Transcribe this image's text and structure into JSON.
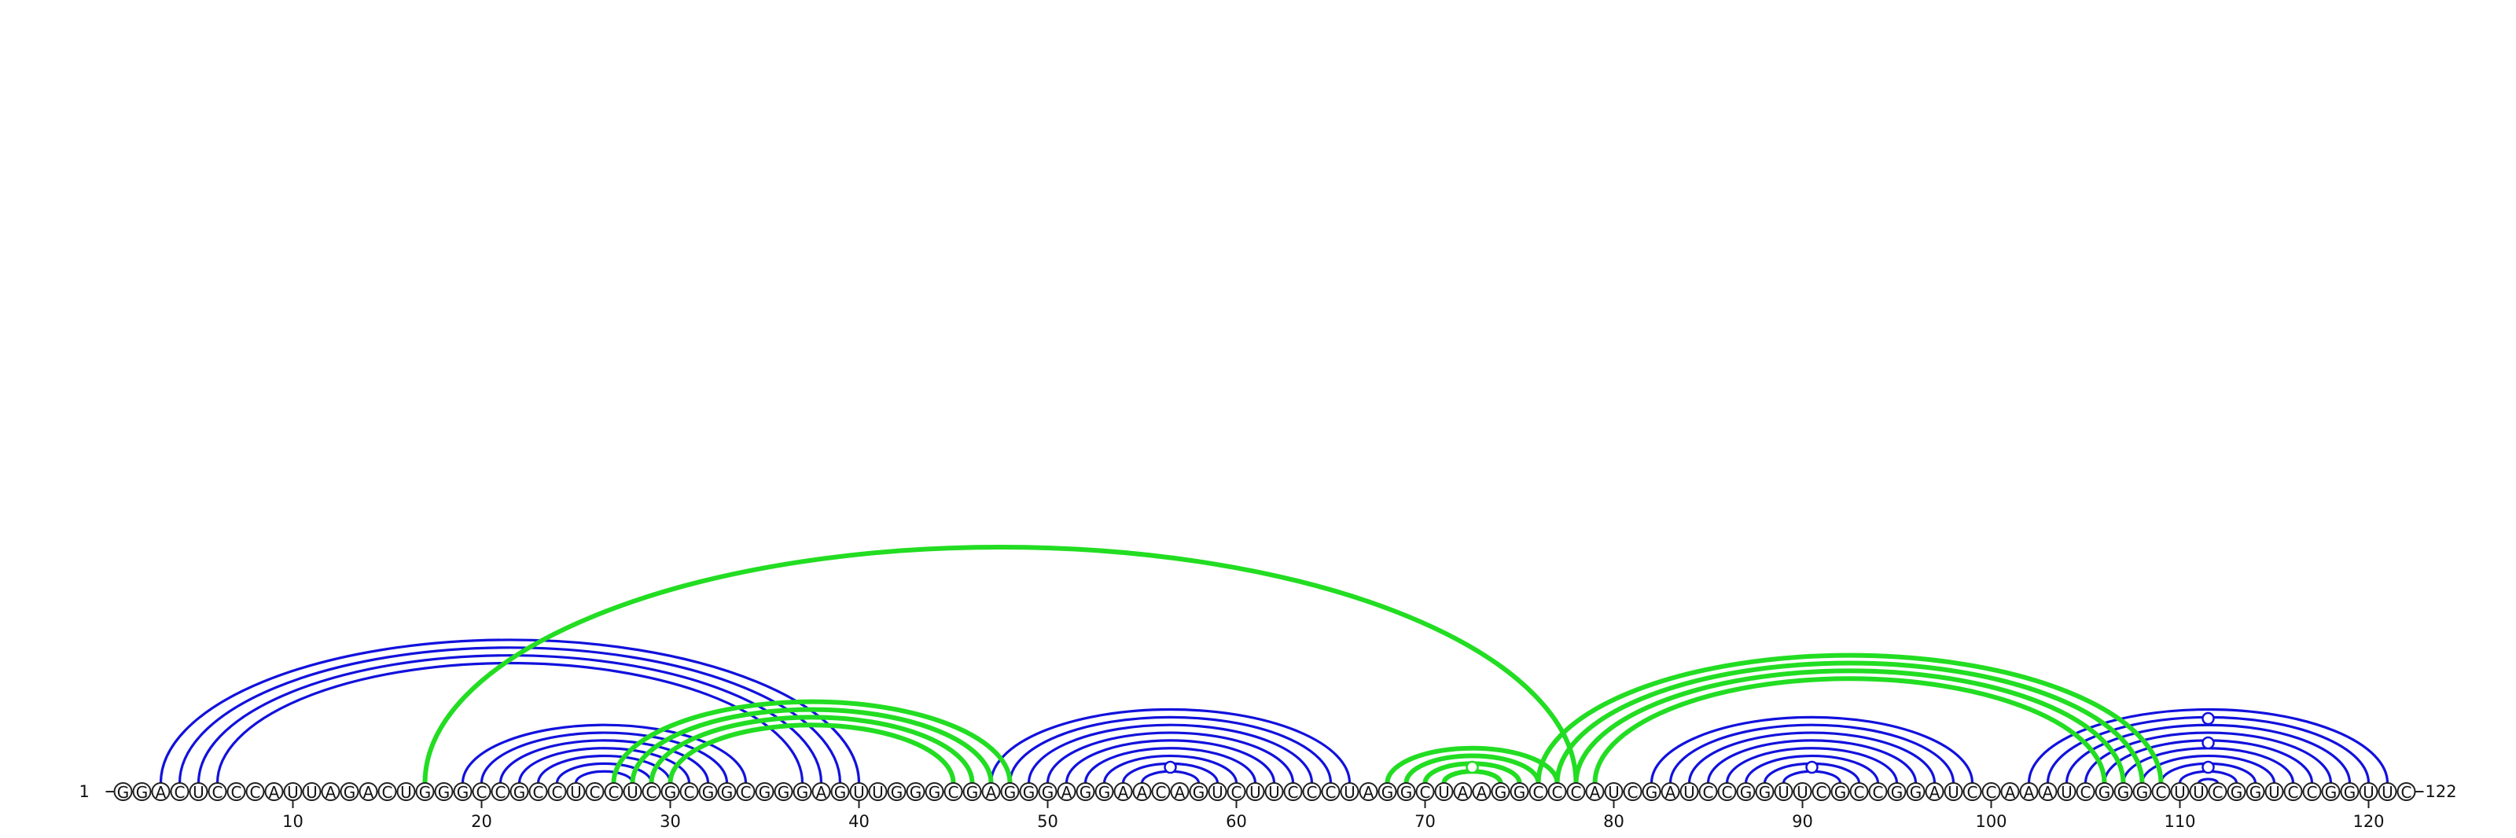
{
  "chart_data": {
    "type": "arc-diagram",
    "sequence": "GGACUCCCAUUAGACUGGGCCGCCUCCUCGCGGCGGGAGUUGGGCGAGGGAGGAACAGUCUUCCCUAGGCUAAGGCCCAUCGAUCCGGUUCGCCGGAUCCAAAUCGGGCUUCGGUCCGGUUC",
    "start_label": "1",
    "end_label": "122",
    "ticks": [
      10,
      20,
      30,
      40,
      50,
      60,
      70,
      80,
      90,
      100,
      110,
      120
    ],
    "colors": {
      "primary": "#1111dd",
      "secondary": "#22dd22"
    },
    "helices": [
      {
        "color": "primary",
        "i": 3,
        "j": 40,
        "len": 4
      },
      {
        "color": "primary",
        "i": 19,
        "j": 34,
        "len": 7
      },
      {
        "color": "primary",
        "i": 47,
        "j": 66,
        "len": 9
      },
      {
        "color": "primary",
        "i": 82,
        "j": 99,
        "len": 8
      },
      {
        "color": "primary",
        "i": 102,
        "j": 121,
        "len": 10
      },
      {
        "color": "secondary",
        "i": 17,
        "j": 78,
        "len": 1
      },
      {
        "color": "secondary",
        "i": 27,
        "j": 48,
        "len": 4
      },
      {
        "color": "secondary",
        "i": 68,
        "j": 77,
        "len": 4
      },
      {
        "color": "secondary",
        "i": 76,
        "j": 109,
        "len": 4
      }
    ],
    "hairpin_markers": [
      {
        "color": "primary",
        "pos": 56.5,
        "level": 1
      },
      {
        "color": "primary",
        "pos": 90.5,
        "level": 1
      },
      {
        "color": "primary",
        "pos": 111.5,
        "level": 1
      },
      {
        "color": "primary",
        "pos": 111.5,
        "level": 2
      },
      {
        "color": "primary",
        "pos": 111.5,
        "level": 3
      },
      {
        "color": "secondary",
        "pos": 72.5,
        "level": 1
      }
    ]
  }
}
